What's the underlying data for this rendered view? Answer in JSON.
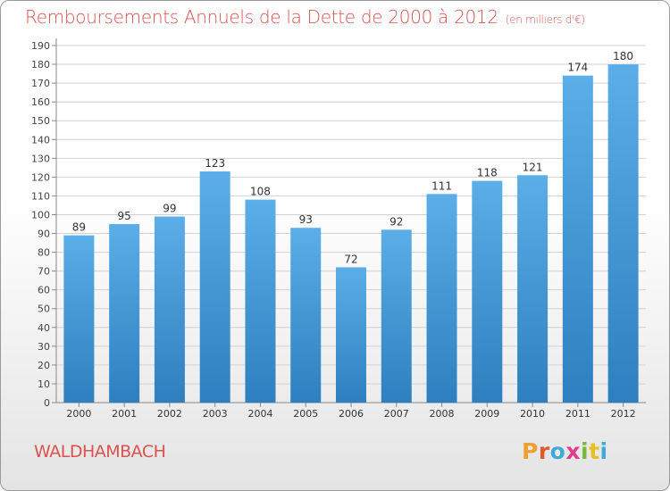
{
  "header": {
    "title": "Remboursements Annuels de la Dette de 2000 à 2012",
    "subtitle": "(en milliers d'€)"
  },
  "footer": {
    "commune": "WALDHAMBACH",
    "logo_text": "Proxiti"
  },
  "colors": {
    "title": "#d9534f",
    "bar_light": "#5caee8",
    "bar_dark": "#2d7fbf",
    "logo": [
      "#f0a030",
      "#e05a2a",
      "#3fa9d8",
      "#e03c8c",
      "#7ab83a",
      "#e8c020",
      "#3fa9d8"
    ]
  },
  "chart_data": {
    "type": "bar",
    "categories": [
      "2000",
      "2001",
      "2002",
      "2003",
      "2004",
      "2005",
      "2006",
      "2007",
      "2008",
      "2009",
      "2010",
      "2011",
      "2012"
    ],
    "values": [
      89,
      95,
      99,
      123,
      108,
      93,
      72,
      92,
      111,
      118,
      121,
      174,
      180
    ],
    "ylim": [
      0,
      190
    ],
    "yticks": [
      0,
      10,
      20,
      30,
      40,
      50,
      60,
      70,
      80,
      90,
      100,
      110,
      120,
      130,
      140,
      150,
      160,
      170,
      180,
      190
    ],
    "grid": true,
    "data_labels": true
  }
}
